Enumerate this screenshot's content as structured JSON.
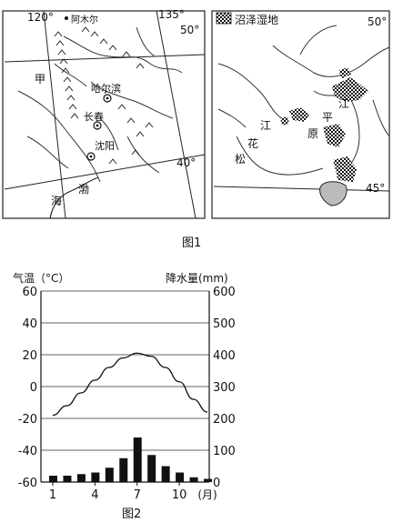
{
  "figure1": {
    "caption": "图1",
    "left_map": {
      "lon_labels": [
        "120°",
        "135°"
      ],
      "lat_labels": [
        "50°",
        "40°"
      ],
      "region_label": "甲",
      "sea_labels": [
        "海",
        "渤"
      ],
      "cities": [
        "阿木尔",
        "哈尔滨",
        "长春",
        "沈阳"
      ]
    },
    "right_map": {
      "legend_label": "沼泽湿地",
      "lat_labels": [
        "50°",
        "45°"
      ],
      "place_chars": [
        "松",
        "花",
        "江",
        "原",
        "平",
        "江"
      ]
    }
  },
  "figure2": {
    "caption": "图2",
    "y_left_label": "气温（°C）",
    "y_right_label": "降水量(mm)",
    "x_unit": "(月)",
    "chart_data": {
      "type": "bar",
      "title": "",
      "months": [
        1,
        2,
        3,
        4,
        5,
        6,
        7,
        8,
        9,
        10,
        11,
        12
      ],
      "x_ticks": [
        1,
        4,
        7,
        10
      ],
      "temperature_ticks": [
        60,
        40,
        20,
        0,
        -20,
        -40,
        -60
      ],
      "precip_ticks": [
        600,
        500,
        400,
        300,
        200,
        100,
        0
      ],
      "temperature_range": [
        -60,
        60
      ],
      "precip_range": [
        0,
        600
      ],
      "series": [
        {
          "name": "气温",
          "type": "line",
          "values": [
            -18,
            -12,
            -4,
            4,
            12,
            18,
            21,
            19,
            12,
            3,
            -8,
            -16
          ]
        },
        {
          "name": "降水量",
          "type": "bar",
          "values": [
            20,
            20,
            25,
            30,
            45,
            75,
            140,
            85,
            50,
            30,
            15,
            10
          ]
        }
      ]
    }
  }
}
